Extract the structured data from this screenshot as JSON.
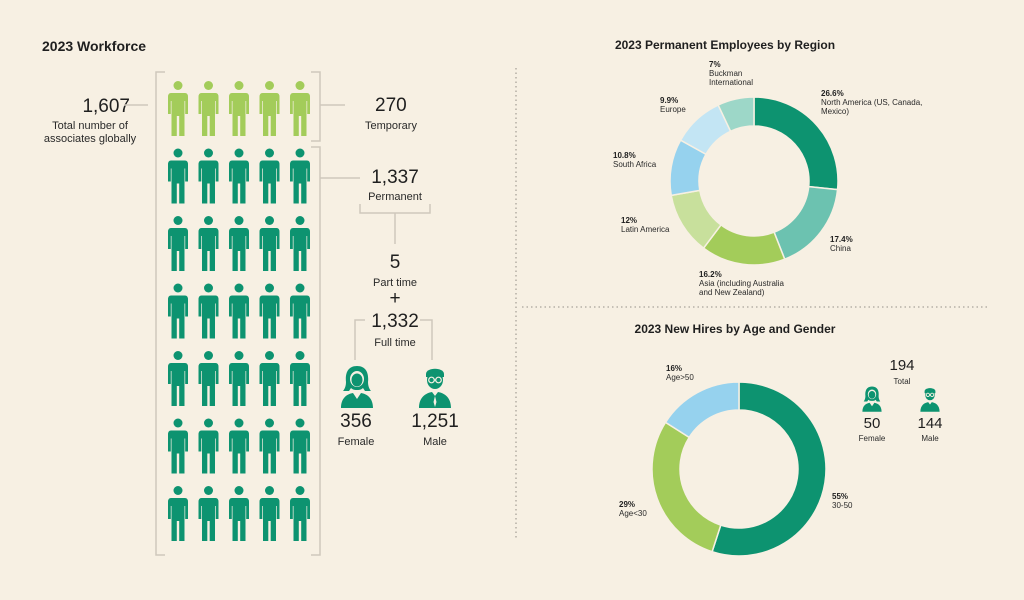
{
  "colors": {
    "background": "#f7f0e3",
    "temporary": "#a3cc5a",
    "permanent": "#0d9370",
    "bracket": "#cfc8bc",
    "divider": "#a9a49a"
  },
  "workforce": {
    "title": "2023 Workforce",
    "total_value": "1,607",
    "total_label": "Total number of associates globally",
    "temporary_value": "270",
    "temporary_label": "Temporary",
    "permanent_value": "1,337",
    "permanent_label": "Permanent",
    "part_time_value": "5",
    "part_time_label": "Part time",
    "plus": "+",
    "full_time_value": "1,332",
    "full_time_label": "Full time",
    "female_value": "356",
    "female_label": "Female",
    "male_value": "1,251",
    "male_label": "Male",
    "icon_rows": [
      {
        "type": "temporary",
        "count": 5
      },
      {
        "type": "permanent",
        "count": 5
      },
      {
        "type": "permanent",
        "count": 5
      },
      {
        "type": "permanent",
        "count": 5
      },
      {
        "type": "permanent",
        "count": 5
      },
      {
        "type": "permanent",
        "count": 5
      },
      {
        "type": "permanent",
        "count": 5
      }
    ]
  },
  "new_hires": {
    "total_value": "194",
    "total_label": "Total",
    "female_value": "50",
    "female_label": "Female",
    "male_value": "144",
    "male_label": "Male"
  },
  "chart_data": [
    {
      "type": "pie",
      "title": "2023 Permanent Employees by Region",
      "series": [
        {
          "pct_text": "26.6%",
          "label": "North America (US, Canada, Mexico)",
          "value": 26.6,
          "color": "#0d9370"
        },
        {
          "pct_text": "17.4%",
          "label": "China",
          "value": 17.4,
          "color": "#6cc2b0"
        },
        {
          "pct_text": "16.2%",
          "label": "Asia (including Australia and New Zealand)",
          "value": 16.2,
          "color": "#a3cc5a"
        },
        {
          "pct_text": "12%",
          "label": "Latin America",
          "value": 12,
          "color": "#c8e09c"
        },
        {
          "pct_text": "10.8%",
          "label": "South Africa",
          "value": 10.8,
          "color": "#96d2ee"
        },
        {
          "pct_text": "9.9%",
          "label": "Europe",
          "value": 9.9,
          "color": "#c3e5f4"
        },
        {
          "pct_text": "7%",
          "label": "Buckman International",
          "value": 7,
          "color": "#9dd7c8"
        }
      ]
    },
    {
      "type": "pie",
      "title": "2023 New Hires by Age and Gender",
      "series": [
        {
          "pct_text": "55%",
          "label": "30-50",
          "value": 55,
          "color": "#0d9370"
        },
        {
          "pct_text": "29%",
          "label": "Age<30",
          "value": 29,
          "color": "#a3cc5a"
        },
        {
          "pct_text": "16%",
          "label": "Age>50",
          "value": 16,
          "color": "#96d2ee"
        }
      ]
    }
  ]
}
